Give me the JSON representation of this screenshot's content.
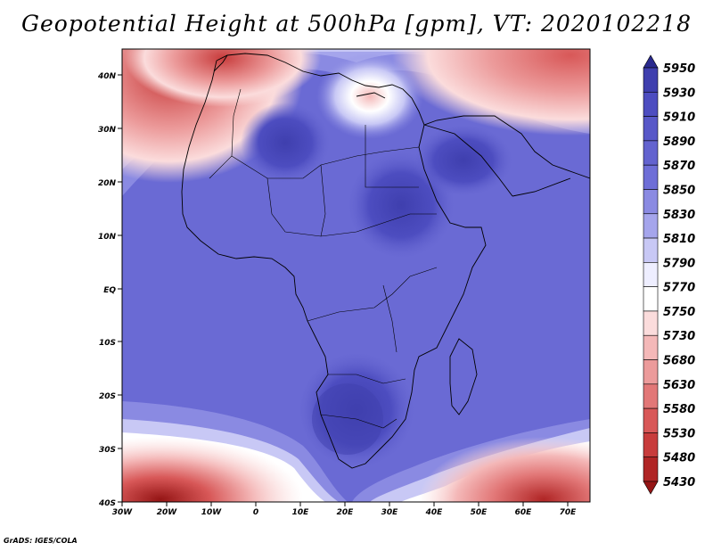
{
  "title": "Geopotential Height at 500hPa [gpm], VT: 2020102218",
  "credit": "GrADS: IGES/COLA",
  "map": {
    "region": "Africa",
    "lon_range": [
      -30,
      75
    ],
    "lat_range": [
      -40,
      45
    ],
    "lon_ticks": [
      "30W",
      "20W",
      "10W",
      "0",
      "10E",
      "20E",
      "30E",
      "40E",
      "50E",
      "60E",
      "70E"
    ],
    "lat_ticks": [
      "40N",
      "30N",
      "20N",
      "10N",
      "EQ",
      "10S",
      "20S",
      "30S",
      "40S"
    ]
  },
  "colorbar": {
    "levels": [
      "5950",
      "5930",
      "5910",
      "5890",
      "5870",
      "5850",
      "5830",
      "5810",
      "5790",
      "5770",
      "5750",
      "5730",
      "5680",
      "5630",
      "5580",
      "5530",
      "5480",
      "5430"
    ],
    "colors": [
      "#2a2a8e",
      "#3f3fae",
      "#4d4dc0",
      "#5858c8",
      "#6363cf",
      "#6e6ed7",
      "#8a8ae2",
      "#a5a5ec",
      "#c8c8f5",
      "#eeeeff",
      "#ffffff",
      "#fbdcdc",
      "#f4b8b8",
      "#ec9b9b",
      "#e27777",
      "#d85858",
      "#c83c3c",
      "#b02525",
      "#951515"
    ]
  }
}
